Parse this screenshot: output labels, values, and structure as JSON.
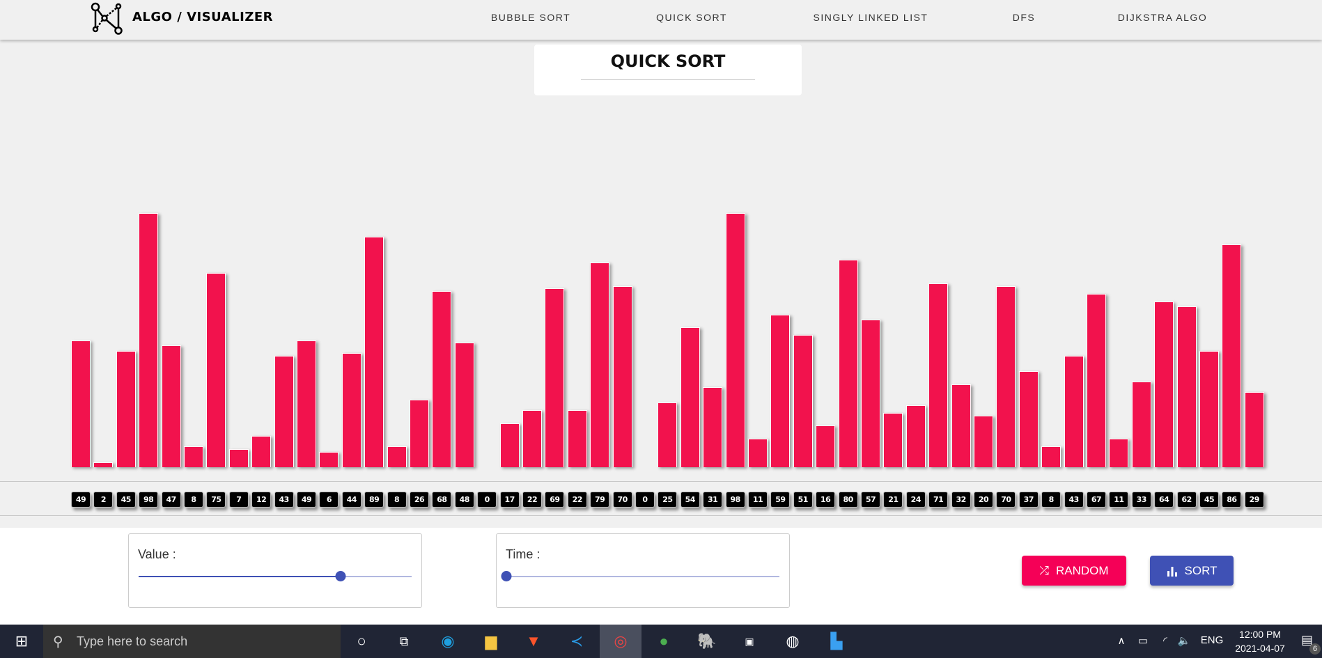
{
  "header": {
    "brand": "ALGO / VISUALIZER",
    "nav": [
      "BUBBLE SORT",
      "QUICK SORT",
      "SINGLY LINKED LIST",
      "DFS",
      "DIJKSTRA ALGO"
    ]
  },
  "title": "QUICK SORT",
  "array": [
    49,
    2,
    45,
    98,
    47,
    8,
    75,
    7,
    12,
    43,
    49,
    6,
    44,
    89,
    8,
    26,
    68,
    48,
    0,
    17,
    22,
    69,
    22,
    79,
    70,
    0,
    25,
    54,
    31,
    98,
    11,
    59,
    51,
    16,
    80,
    57,
    21,
    24,
    71,
    32,
    20,
    70,
    37,
    8,
    43,
    67,
    11,
    33,
    64,
    62,
    45,
    86,
    29
  ],
  "bar_color": "#f2124d",
  "controls": {
    "value_label": "Value :",
    "value_fraction": 0.74,
    "time_label": "Time :",
    "time_fraction": 0.0,
    "random_label": "RANDOM",
    "sort_label": "SORT",
    "random_color": "#f50057",
    "sort_color": "#3f51b5"
  },
  "taskbar": {
    "search_placeholder": "Type here to search",
    "apps": [
      "cortana",
      "task-view",
      "edge",
      "file-explorer",
      "brave",
      "vscode",
      "chrome",
      "mongodb-compass",
      "pgadmin",
      "intellij",
      "app",
      "photos"
    ],
    "lang": "ENG",
    "time": "12:00 PM",
    "date": "2021-04-07",
    "notifications": "6"
  }
}
